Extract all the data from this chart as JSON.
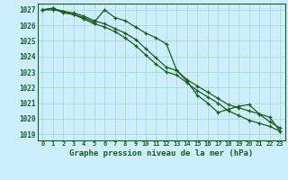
{
  "title": "Graphe pression niveau de la mer (hPa)",
  "bg_color": "#cceeff",
  "grid_color": "#aaddcc",
  "line_color": "#1a5c1a",
  "xlim": [
    -0.5,
    23.5
  ],
  "ylim": [
    1018.6,
    1027.4
  ],
  "yticks": [
    1019,
    1020,
    1021,
    1022,
    1023,
    1024,
    1025,
    1026,
    1027
  ],
  "xticks": [
    0,
    1,
    2,
    3,
    4,
    5,
    6,
    7,
    8,
    9,
    10,
    11,
    12,
    13,
    14,
    15,
    16,
    17,
    18,
    19,
    20,
    21,
    22,
    23
  ],
  "line1": [
    1027.0,
    1027.1,
    1026.8,
    1026.7,
    1026.5,
    1026.2,
    1027.0,
    1026.5,
    1026.3,
    1025.9,
    1025.5,
    1025.2,
    1024.8,
    1023.1,
    1022.4,
    1021.5,
    1021.0,
    1020.4,
    1020.6,
    1020.8,
    1020.9,
    1020.3,
    1019.8,
    1019.4
  ],
  "line2": [
    1027.0,
    1027.1,
    1026.9,
    1026.8,
    1026.6,
    1026.3,
    1026.1,
    1025.8,
    1025.5,
    1025.1,
    1024.5,
    1023.9,
    1023.3,
    1023.1,
    1022.5,
    1022.1,
    1021.7,
    1021.3,
    1020.9,
    1020.7,
    1020.5,
    1020.3,
    1020.1,
    1019.2
  ],
  "line3": [
    1027.0,
    1027.0,
    1026.9,
    1026.7,
    1026.4,
    1026.1,
    1025.9,
    1025.6,
    1025.2,
    1024.7,
    1024.1,
    1023.5,
    1023.0,
    1022.8,
    1022.3,
    1021.8,
    1021.4,
    1021.0,
    1020.5,
    1020.2,
    1019.9,
    1019.7,
    1019.5,
    1019.2
  ]
}
